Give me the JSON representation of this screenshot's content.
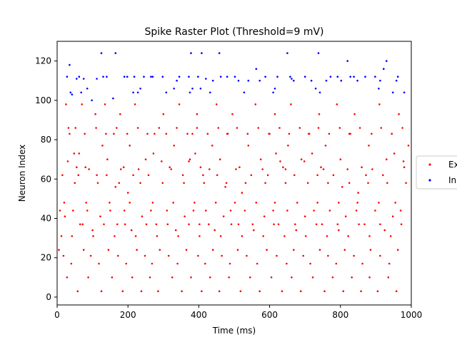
{
  "chart_data": {
    "type": "scatter",
    "title": "Spike Raster Plot (Threshold=9 mV)",
    "xlabel": "Time (ms)",
    "ylabel": "Neuron Index",
    "xlim": [
      0,
      1000
    ],
    "ylim": [
      -4,
      130
    ],
    "xticks": [
      0,
      200,
      400,
      600,
      800,
      1000
    ],
    "yticks": [
      0,
      20,
      40,
      60,
      80,
      100,
      120
    ],
    "grid": false,
    "legend_position": "right, outside the plot area (clipped)",
    "series": [
      {
        "name": "Ex",
        "color": "#ff0000",
        "x": [
          25,
          35,
          55,
          62,
          70,
          80,
          108,
          128,
          135,
          142,
          160,
          178,
          188,
          205,
          220,
          250,
          275,
          300,
          318,
          330,
          345,
          375,
          382,
          395,
          405,
          438,
          450,
          460,
          480,
          495,
          515,
          540,
          560,
          575,
          600,
          615,
          638,
          652,
          660,
          690,
          710,
          740,
          745,
          758,
          790,
          800,
          825,
          840,
          860,
          880,
          910,
          930,
          945,
          965,
          980,
          992,
          15,
          30,
          48,
          60,
          90,
          112,
          140,
          165,
          180,
          200,
          215,
          230,
          258,
          272,
          295,
          322,
          355,
          372,
          390,
          412,
          430,
          452,
          475,
          505,
          522,
          548,
          580,
          595,
          618,
          630,
          645,
          670,
          698,
          720,
          735,
          752,
          780,
          805,
          820,
          850,
          872,
          890,
          920,
          952,
          978,
          8,
          22,
          45,
          65,
          85,
          100,
          122,
          150,
          170,
          190,
          210,
          240,
          265,
          280,
          310,
          335,
          360,
          385,
          402,
          420,
          445,
          470,
          490,
          512,
          530,
          555,
          585,
          610,
          625,
          650,
          675,
          700,
          725,
          748,
          770,
          795,
          815,
          845,
          868,
          898,
          925,
          948,
          970,
          5,
          18,
          40,
          75,
          95,
          118,
          145,
          172,
          195,
          225,
          248,
          268,
          290,
          315,
          340,
          365,
          398,
          418,
          440,
          465,
          488,
          510,
          535,
          565,
          592,
          620,
          648,
          668,
          695,
          715,
          742,
          765,
          788,
          812,
          838,
          862,
          885,
          912,
          938,
          962,
          28,
          58,
          88,
          125,
          155,
          185,
          212,
          238,
          262,
          285,
          325,
          352,
          378,
          408,
          432,
          458,
          485,
          518,
          545,
          572,
          605,
          635,
          662,
          688,
          722,
          755,
          778,
          808,
          832,
          858,
          882,
          905,
          935,
          958,
          12,
          42,
          72,
          102,
          132,
          162,
          192,
          222,
          252,
          282,
          312,
          342,
          372,
          402,
          428,
          462,
          492,
          522,
          552,
          582,
          612,
          642,
          672,
          702,
          732,
          762,
          792,
          822,
          852,
          882,
          912,
          942,
          972,
          32,
          52,
          78,
          110,
          138,
          168,
          198,
          228,
          255,
          288,
          308,
          338,
          368,
          395,
          425,
          455,
          482,
          508,
          538,
          568,
          598,
          628,
          655,
          685,
          712,
          738,
          768,
          798,
          828,
          855,
          888,
          915,
          945,
          975,
          20,
          50,
          82,
          115,
          148,
          175,
          205,
          235,
          270,
          298,
          328,
          358,
          388,
          415,
          448,
          478,
          502,
          532,
          562,
          588,
          615,
          645,
          678,
          708,
          735,
          765,
          795,
          825,
          848,
          878,
          908,
          932,
          955,
          985
        ],
        "y": [
          98,
          83,
          66,
          73,
          98,
          66,
          93,
          77,
          98,
          70,
          83,
          93,
          66,
          77,
          98,
          70,
          83,
          93,
          66,
          77,
          98,
          70,
          83,
          93,
          66,
          77,
          98,
          70,
          83,
          93,
          66,
          77,
          98,
          70,
          83,
          93,
          66,
          77,
          98,
          70,
          83,
          93,
          66,
          77,
          98,
          70,
          83,
          93,
          66,
          77,
          98,
          70,
          83,
          93,
          66,
          77,
          62,
          69,
          73,
          62,
          65,
          62,
          62,
          56,
          65,
          53,
          62,
          65,
          62,
          73,
          69,
          65,
          62,
          69,
          73,
          62,
          65,
          62,
          56,
          65,
          53,
          62,
          65,
          62,
          73,
          69,
          65,
          62,
          69,
          73,
          62,
          65,
          62,
          56,
          65,
          53,
          62,
          65,
          62,
          73,
          69,
          44,
          41,
          44,
          37,
          44,
          34,
          41,
          44,
          37,
          44,
          34,
          41,
          44,
          37,
          44,
          34,
          41,
          44,
          37,
          44,
          34,
          41,
          44,
          37,
          44,
          34,
          41,
          44,
          37,
          44,
          34,
          41,
          44,
          37,
          44,
          34,
          41,
          44,
          37,
          44,
          34,
          41,
          44,
          24,
          21,
          17,
          24,
          21,
          17,
          24,
          21,
          17,
          24,
          21,
          17,
          24,
          21,
          17,
          24,
          21,
          17,
          24,
          21,
          17,
          24,
          21,
          17,
          24,
          21,
          17,
          24,
          21,
          17,
          24,
          21,
          17,
          24,
          21,
          17,
          24,
          21,
          17,
          24,
          10,
          3,
          10,
          3,
          10,
          3,
          10,
          3,
          10,
          3,
          10,
          3,
          10,
          3,
          10,
          3,
          10,
          3,
          10,
          3,
          10,
          3,
          10,
          3,
          10,
          3,
          10,
          3,
          10,
          3,
          10,
          3,
          10,
          3,
          31,
          31,
          37,
          31,
          37,
          31,
          37,
          31,
          37,
          31,
          37,
          31,
          37,
          31,
          37,
          31,
          37,
          31,
          37,
          31,
          37,
          31,
          37,
          31,
          37,
          31,
          37,
          31,
          37,
          31,
          37,
          31,
          37,
          86,
          86,
          83,
          86,
          83,
          86,
          83,
          86,
          83,
          86,
          83,
          86,
          83,
          86,
          83,
          86,
          83,
          86,
          83,
          86,
          83,
          86,
          83,
          86,
          83,
          86,
          83,
          86,
          83,
          86,
          83,
          86,
          83,
          86,
          48,
          58,
          48,
          58,
          48,
          58,
          48,
          58,
          48,
          58,
          48,
          58,
          48,
          58,
          48,
          58,
          48,
          58,
          48,
          58,
          48,
          58,
          48,
          58,
          48,
          58,
          48,
          58,
          48,
          58,
          48,
          58,
          48,
          58
        ]
      },
      {
        "name": "In",
        "color": "#0000ff",
        "x": [
          28,
          35,
          38,
          42,
          55,
          62,
          68,
          75,
          85,
          98,
          112,
          125,
          130,
          140,
          158,
          165,
          190,
          198,
          215,
          218,
          228,
          235,
          245,
          265,
          270,
          298,
          308,
          330,
          338,
          345,
          372,
          375,
          378,
          382,
          398,
          405,
          408,
          420,
          432,
          440,
          458,
          462,
          480,
          502,
          512,
          528,
          540,
          562,
          572,
          588,
          610,
          615,
          622,
          650,
          658,
          662,
          668,
          700,
          718,
          730,
          738,
          742,
          760,
          772,
          792,
          802,
          820,
          828,
          838,
          848,
          870,
          898,
          908,
          912,
          922,
          930,
          948,
          958,
          962,
          980
        ],
        "y": [
          112,
          118,
          104,
          103,
          111,
          112,
          104,
          111,
          106,
          100,
          111,
          124,
          112,
          112,
          101,
          124,
          112,
          112,
          104,
          112,
          104,
          106,
          112,
          112,
          112,
          112,
          104,
          106,
          110,
          112,
          112,
          104,
          124,
          106,
          112,
          106,
          124,
          111,
          104,
          110,
          124,
          112,
          112,
          112,
          110,
          104,
          110,
          116,
          110,
          112,
          104,
          106,
          112,
          124,
          112,
          111,
          110,
          112,
          110,
          106,
          124,
          104,
          110,
          112,
          112,
          110,
          120,
          112,
          112,
          110,
          112,
          112,
          106,
          110,
          116,
          120,
          104,
          110,
          112,
          104
        ]
      }
    ]
  }
}
